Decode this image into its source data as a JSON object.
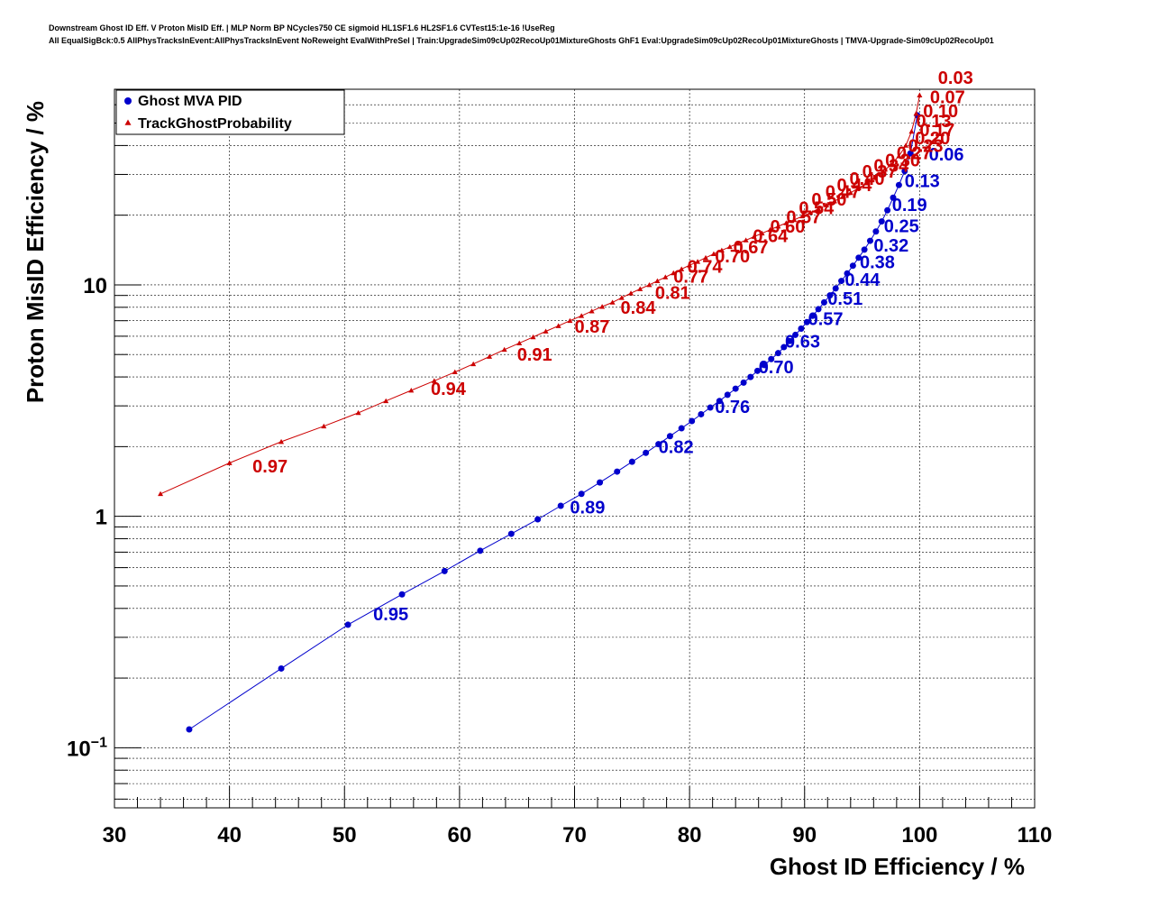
{
  "title_line1": "Downstream Ghost ID Eff. V Proton MisID Eff. | MLP Norm BP NCycles750 CE sigmoid HL1SF1.6 HL2SF1.6 CVTest15:1e-16 !UseReg",
  "title_line2": "All EqualSigBck:0.5 AllPhysTracksInEvent:AllPhysTracksInEvent NoReweight EvalWithPreSel | Train:UpgradeSim09cUp02RecoUp01MixtureGhosts GhF1 Eval:UpgradeSim09cUp02RecoUp01MixtureGhosts | TMVA-Upgrade-Sim09cUp02RecoUp01",
  "colors": {
    "ghost_mva": "#0000cc",
    "track_ghost": "#cc0000",
    "grid": "#000000"
  },
  "chart_data": {
    "type": "scatter",
    "xlabel": "Ghost ID Efficiency / %",
    "ylabel": "Proton MisID Efficiency / %",
    "xlim": [
      30,
      110
    ],
    "ylim": [
      0.055,
      70
    ],
    "yscale": "log",
    "grid": true,
    "legend_position": "top-left",
    "x_ticks": [
      "30",
      "40",
      "50",
      "60",
      "70",
      "80",
      "90",
      "100",
      "110"
    ],
    "y_ticks": [
      {
        "value": 0.1,
        "base": "10",
        "exp": "−1"
      },
      {
        "value": 1,
        "base": "1",
        "exp": ""
      },
      {
        "value": 10,
        "base": "10",
        "exp": ""
      }
    ],
    "series": [
      {
        "name": "Ghost MVA PID",
        "marker": "circle",
        "x": [
          36.5,
          44.5,
          50.3,
          55.0,
          58.7,
          61.8,
          64.5,
          66.8,
          68.8,
          70.6,
          72.2,
          73.7,
          75.0,
          76.2,
          77.3,
          78.3,
          79.3,
          80.2,
          81.0,
          81.8,
          82.6,
          83.3,
          84.0,
          84.7,
          85.3,
          85.9,
          86.5,
          87.1,
          87.7,
          88.2,
          88.7,
          89.2,
          89.7,
          90.2,
          90.7,
          91.2,
          91.7,
          92.2,
          92.7,
          93.2,
          93.7,
          94.2,
          94.7,
          95.2,
          95.7,
          96.2,
          96.7,
          97.2,
          97.7,
          98.2,
          98.7,
          99.2,
          99.8
        ],
        "y": [
          0.12,
          0.22,
          0.34,
          0.46,
          0.58,
          0.71,
          0.84,
          0.97,
          1.11,
          1.25,
          1.4,
          1.56,
          1.72,
          1.88,
          2.05,
          2.22,
          2.4,
          2.58,
          2.76,
          2.95,
          3.15,
          3.35,
          3.56,
          3.78,
          4.0,
          4.25,
          4.5,
          4.78,
          5.07,
          5.38,
          5.72,
          6.08,
          6.47,
          6.9,
          7.35,
          7.85,
          8.4,
          9.0,
          9.65,
          10.4,
          11.2,
          12.1,
          13.1,
          14.2,
          15.5,
          17.0,
          18.8,
          21.0,
          23.8,
          27.0,
          31.0,
          37.0,
          54.0
        ],
        "annotations": [
          {
            "x": 52.5,
            "y": 0.355,
            "text": "0.95"
          },
          {
            "x": 69.6,
            "y": 1.03,
            "text": "0.89"
          },
          {
            "x": 77.3,
            "y": 1.88,
            "text": "0.82"
          },
          {
            "x": 82.2,
            "y": 2.8,
            "text": "0.76"
          },
          {
            "x": 86.0,
            "y": 4.15,
            "text": "0.70"
          },
          {
            "x": 88.3,
            "y": 5.35,
            "text": "0.63"
          },
          {
            "x": 90.3,
            "y": 6.7,
            "text": "0.57"
          },
          {
            "x": 92.0,
            "y": 8.2,
            "text": "0.51"
          },
          {
            "x": 93.5,
            "y": 9.9,
            "text": "0.44"
          },
          {
            "x": 94.8,
            "y": 11.8,
            "text": "0.38"
          },
          {
            "x": 96.0,
            "y": 13.9,
            "text": "0.32"
          },
          {
            "x": 96.9,
            "y": 16.9,
            "text": "0.25"
          },
          {
            "x": 97.6,
            "y": 20.9,
            "text": "0.19"
          },
          {
            "x": 98.7,
            "y": 26.5,
            "text": "0.13"
          },
          {
            "x": 100.8,
            "y": 34.5,
            "text": "0.06"
          }
        ]
      },
      {
        "name": "TrackGhostProbability",
        "marker": "triangle",
        "x": [
          34.0,
          40.0,
          44.5,
          48.2,
          51.2,
          53.6,
          55.8,
          57.8,
          59.6,
          61.2,
          62.6,
          63.9,
          65.2,
          66.4,
          67.5,
          68.6,
          69.6,
          70.6,
          71.5,
          72.4,
          73.3,
          74.1,
          74.9,
          75.7,
          76.5,
          77.2,
          77.9,
          78.6,
          79.3,
          80.0,
          80.7,
          81.4,
          82.1,
          82.8,
          83.5,
          84.2,
          84.9,
          85.6,
          86.3,
          87.0,
          87.7,
          88.4,
          89.1,
          89.8,
          90.5,
          91.2,
          91.9,
          92.6,
          93.3,
          94.0,
          94.7,
          95.4,
          96.1,
          96.8,
          97.5,
          98.2,
          98.8,
          99.3,
          99.7,
          100.0
        ],
        "y": [
          1.25,
          1.7,
          2.1,
          2.45,
          2.8,
          3.15,
          3.5,
          3.85,
          4.2,
          4.55,
          4.9,
          5.25,
          5.6,
          5.95,
          6.3,
          6.65,
          7.0,
          7.35,
          7.7,
          8.05,
          8.4,
          8.8,
          9.2,
          9.6,
          10.0,
          10.4,
          10.8,
          11.25,
          11.7,
          12.15,
          12.6,
          13.1,
          13.6,
          14.1,
          14.6,
          15.1,
          15.6,
          16.15,
          16.7,
          17.3,
          17.9,
          18.5,
          19.1,
          19.8,
          20.5,
          21.3,
          22.1,
          23.0,
          24.0,
          25.0,
          26.2,
          27.5,
          29.0,
          30.8,
          33.0,
          36.0,
          40.0,
          46.0,
          55.0,
          66.0
        ],
        "annotations": [
          {
            "x": 42.0,
            "y": 1.55,
            "text": "0.97"
          },
          {
            "x": 57.5,
            "y": 3.35,
            "text": "0.94"
          },
          {
            "x": 65.0,
            "y": 4.7,
            "text": "0.91"
          },
          {
            "x": 70.0,
            "y": 6.2,
            "text": "0.87"
          },
          {
            "x": 74.0,
            "y": 7.5,
            "text": "0.84"
          },
          {
            "x": 77.0,
            "y": 8.7,
            "text": "0.81"
          },
          {
            "x": 78.6,
            "y": 10.2,
            "text": "0.77"
          },
          {
            "x": 79.8,
            "y": 11.3,
            "text": "0.74"
          },
          {
            "x": 82.2,
            "y": 12.5,
            "text": "0.70"
          },
          {
            "x": 83.8,
            "y": 13.7,
            "text": "0.67"
          },
          {
            "x": 85.5,
            "y": 15.3,
            "text": "0.64"
          },
          {
            "x": 87.0,
            "y": 16.8,
            "text": "0.60"
          },
          {
            "x": 88.4,
            "y": 18.5,
            "text": "0.57"
          },
          {
            "x": 89.5,
            "y": 20.2,
            "text": "0.54"
          },
          {
            "x": 90.6,
            "y": 22.0,
            "text": "0.50"
          },
          {
            "x": 91.8,
            "y": 23.8,
            "text": "0.47"
          },
          {
            "x": 92.8,
            "y": 25.4,
            "text": "0.44"
          },
          {
            "x": 93.9,
            "y": 27.0,
            "text": "0.40"
          },
          {
            "x": 95.0,
            "y": 29.0,
            "text": "0.37"
          },
          {
            "x": 96.0,
            "y": 30.8,
            "text": "0.34"
          },
          {
            "x": 97.0,
            "y": 32.5,
            "text": "0.30"
          },
          {
            "x": 98.0,
            "y": 35.0,
            "text": "0.27"
          },
          {
            "x": 99.0,
            "y": 37.5,
            "text": "0.23"
          },
          {
            "x": 99.6,
            "y": 40.5,
            "text": "0.20"
          },
          {
            "x": 100.0,
            "y": 44.0,
            "text": "0.17"
          },
          {
            "x": 99.7,
            "y": 48.0,
            "text": "0.13"
          },
          {
            "x": 100.3,
            "y": 53.0,
            "text": "0.10"
          },
          {
            "x": 100.9,
            "y": 61.0,
            "text": "0.07"
          },
          {
            "x": 101.6,
            "y": 74.0,
            "text": "0.03"
          }
        ]
      }
    ]
  }
}
